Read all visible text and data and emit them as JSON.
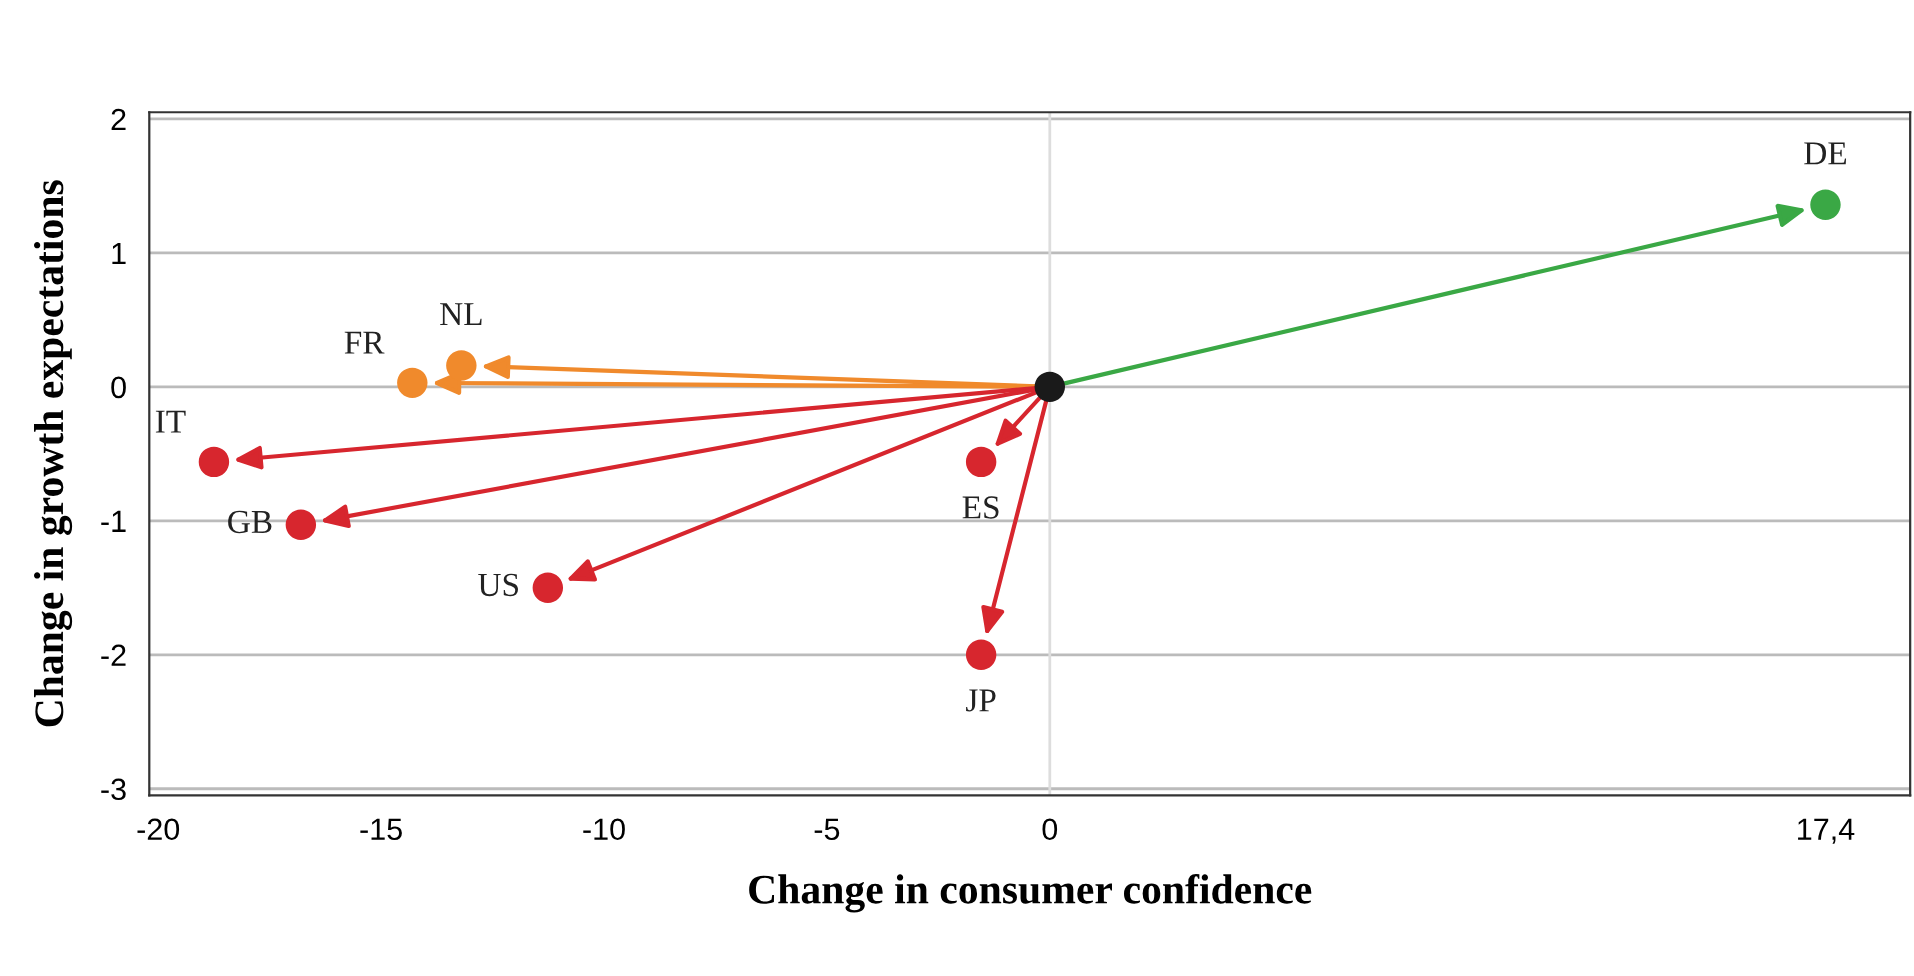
{
  "chart_data": {
    "type": "scatter",
    "xlabel": "Change in consumer confidence",
    "ylabel": "Change in growth expectations",
    "series": [
      {
        "x": [
          0
        ],
        "values": [
          0
        ],
        "color": "#1a1a1a"
      },
      {
        "x": [
          17.4,
          -13.2,
          -14.3,
          -18.75,
          -16.8,
          -11.26,
          -1.54,
          -1.54
        ],
        "values": [
          1.36,
          0.16,
          0.03,
          -0.56,
          -1.03,
          -1.5,
          -0.56,
          -2.0
        ],
        "colors": [
          "#3aa845",
          "#f08a2c",
          "#f08a2c",
          "#d7262e",
          "#d7262e",
          "#d7262e",
          "#d7262e",
          "#d7262e"
        ]
      }
    ],
    "annotations": [
      {
        "text": "DE",
        "x": 17.4,
        "y": 1.36
      },
      {
        "text": "NL",
        "x": -13.2,
        "y": 0.16
      },
      {
        "text": "FR",
        "x": -14.3,
        "y": 0.03
      },
      {
        "text": "IT",
        "x": -18.75,
        "y": -0.56
      },
      {
        "text": "GB",
        "x": -16.8,
        "y": -1.03
      },
      {
        "text": "US",
        "x": -11.26,
        "y": -1.5
      },
      {
        "text": "ES",
        "x": -1.54,
        "y": -0.56
      },
      {
        "text": "JP",
        "x": -1.54,
        "y": -2.0
      }
    ],
    "xlim": [
      -20.2,
      19.3
    ],
    "xticks": [
      -20,
      -15,
      -10,
      -5,
      0,
      {
        "value": 17.4,
        "label": "17,4"
      }
    ],
    "ylim": [
      -3.05,
      2.05
    ],
    "yticks": [
      2,
      1,
      0,
      -1,
      -2,
      -3
    ],
    "ref_lines": [
      {
        "axis": "x",
        "value": 0,
        "color": "#dddddd"
      }
    ],
    "grid": "y",
    "marker": "circle"
  }
}
